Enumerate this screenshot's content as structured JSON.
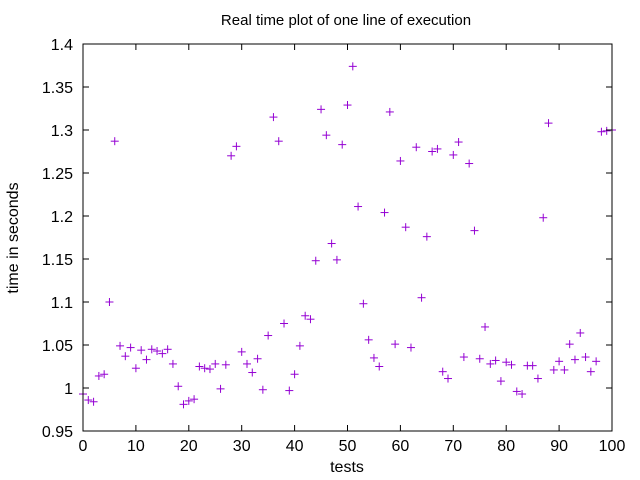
{
  "chart_data": {
    "type": "scatter",
    "title": "Real time plot of one line of execution",
    "xlabel": "tests",
    "ylabel": "time in seconds",
    "xlim": [
      0,
      100
    ],
    "ylim": [
      0.95,
      1.4
    ],
    "xticks": [
      "0",
      "10",
      "20",
      "30",
      "40",
      "50",
      "60",
      "70",
      "80",
      "90",
      "100"
    ],
    "yticks": [
      "0.95",
      "1",
      "1.05",
      "1.1",
      "1.15",
      "1.2",
      "1.25",
      "1.3",
      "1.35",
      "1.4"
    ],
    "grid": false,
    "marker": "+",
    "colors": {
      "points": "#9400d3",
      "axes": "#000000"
    },
    "series": [
      {
        "x": [
          0,
          1,
          2,
          3,
          4,
          5,
          6,
          7,
          8,
          9,
          10,
          11,
          12,
          13,
          14,
          15,
          16,
          17,
          18,
          19,
          20,
          21,
          22,
          23,
          24,
          25,
          26,
          27,
          28,
          29,
          30,
          31,
          32,
          33,
          34,
          35,
          36,
          37,
          38,
          39,
          40,
          41,
          42,
          43,
          44,
          45,
          46,
          47,
          48,
          49,
          50,
          51,
          52,
          53,
          54,
          55,
          56,
          57,
          58,
          59,
          60,
          61,
          62,
          63,
          64,
          65,
          66,
          67,
          68,
          69,
          70,
          71,
          72,
          73,
          74,
          75,
          76,
          77,
          78,
          79,
          80,
          81,
          82,
          83,
          84,
          85,
          86,
          87,
          88,
          89,
          90,
          91,
          92,
          93,
          94,
          95,
          96,
          97,
          98,
          99,
          100
        ],
        "y": [
          0.993,
          0.986,
          0.984,
          1.014,
          1.016,
          1.1,
          1.287,
          1.049,
          1.037,
          1.047,
          1.023,
          1.044,
          1.033,
          1.045,
          1.043,
          1.04,
          1.045,
          1.028,
          1.002,
          0.981,
          0.985,
          0.987,
          1.025,
          1.023,
          1.022,
          1.028,
          0.999,
          1.027,
          1.27,
          1.281,
          1.042,
          1.028,
          1.018,
          1.034,
          0.998,
          1.061,
          1.315,
          1.287,
          1.075,
          0.997,
          1.016,
          1.049,
          1.084,
          1.08,
          1.148,
          1.324,
          1.294,
          1.168,
          1.149,
          1.283,
          1.329,
          1.374,
          1.211,
          1.098,
          1.056,
          1.035,
          1.025,
          1.204,
          1.321,
          1.051,
          1.264,
          1.187,
          1.047,
          1.28,
          1.105,
          1.176,
          1.275,
          1.278,
          1.019,
          1.011,
          1.271,
          1.286,
          1.036,
          1.261,
          1.183,
          1.034,
          1.071,
          1.028,
          1.032,
          1.008,
          1.03,
          1.027,
          0.996,
          0.993,
          1.026,
          1.026,
          1.011,
          1.198,
          1.308,
          1.021,
          1.031,
          1.021,
          1.051,
          1.033,
          1.064,
          1.036,
          1.019,
          1.031,
          1.298,
          1.299,
          1.3
        ]
      }
    ]
  }
}
